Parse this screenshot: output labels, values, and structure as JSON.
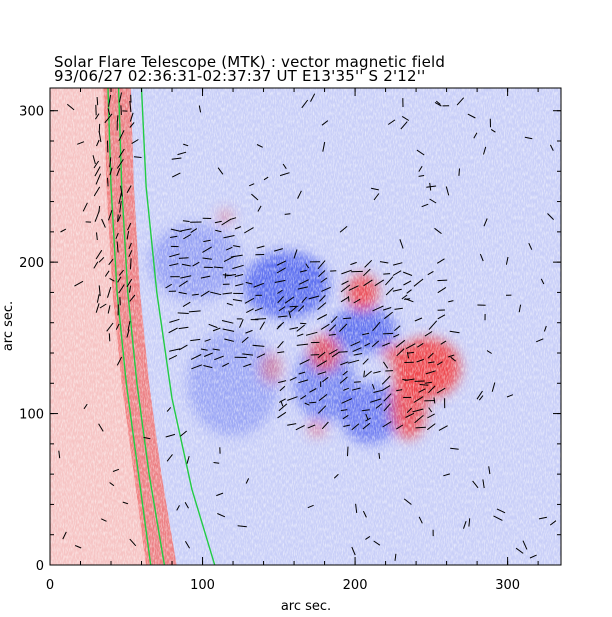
{
  "chart_data": {
    "type": "heatmap",
    "title": "Solar Flare Telescope (MTK) : vector magnetic field",
    "subtitle": "93/06/27  02:36:31-02:37:37 UT    E13'35''  S 2'12''",
    "xlabel": "arc sec.",
    "ylabel": "arc sec.",
    "xlim": [
      0,
      335
    ],
    "ylim": [
      0,
      315
    ],
    "x_ticks": [
      0,
      100,
      200,
      300
    ],
    "y_ticks": [
      0,
      100,
      200,
      300
    ],
    "grid": false,
    "legend": "none",
    "colormap": {
      "negative_polarity": "#5a6cf0",
      "positive_polarity": "#f0444a",
      "zero": "#ffffff",
      "contour": "#22cc44",
      "vectors": "#000000"
    },
    "limb_contours": [
      {
        "name": "inner",
        "points": [
          [
            38,
            315
          ],
          [
            40,
            250
          ],
          [
            44,
            180
          ],
          [
            50,
            120
          ],
          [
            58,
            60
          ],
          [
            66,
            0
          ]
        ]
      },
      {
        "name": "middle",
        "points": [
          [
            45,
            315
          ],
          [
            47,
            250
          ],
          [
            51,
            180
          ],
          [
            57,
            120
          ],
          [
            65,
            60
          ],
          [
            75,
            0
          ]
        ]
      },
      {
        "name": "outer",
        "points": [
          [
            60,
            315
          ],
          [
            63,
            250
          ],
          [
            70,
            180
          ],
          [
            80,
            110
          ],
          [
            93,
            50
          ],
          [
            108,
            0
          ]
        ]
      }
    ],
    "flux_patches": [
      {
        "polarity": "negative",
        "x": 155,
        "y": 185,
        "rx": 28,
        "ry": 22,
        "strength": 0.95
      },
      {
        "polarity": "negative",
        "x": 205,
        "y": 155,
        "rx": 22,
        "ry": 15,
        "strength": 0.9
      },
      {
        "polarity": "negative",
        "x": 180,
        "y": 120,
        "rx": 20,
        "ry": 25,
        "strength": 0.7
      },
      {
        "polarity": "negative",
        "x": 210,
        "y": 100,
        "rx": 20,
        "ry": 20,
        "strength": 0.8
      },
      {
        "polarity": "negative",
        "x": 95,
        "y": 200,
        "rx": 30,
        "ry": 25,
        "strength": 0.45
      },
      {
        "polarity": "negative",
        "x": 120,
        "y": 120,
        "rx": 30,
        "ry": 35,
        "strength": 0.4
      },
      {
        "polarity": "positive",
        "x": 247,
        "y": 130,
        "rx": 22,
        "ry": 20,
        "strength": 0.95
      },
      {
        "polarity": "positive",
        "x": 235,
        "y": 105,
        "rx": 12,
        "ry": 22,
        "strength": 0.85
      },
      {
        "polarity": "positive",
        "x": 205,
        "y": 180,
        "rx": 10,
        "ry": 12,
        "strength": 0.9
      },
      {
        "polarity": "positive",
        "x": 180,
        "y": 140,
        "rx": 10,
        "ry": 12,
        "strength": 0.8
      },
      {
        "polarity": "positive",
        "x": 225,
        "y": 140,
        "rx": 7,
        "ry": 6,
        "strength": 0.7
      },
      {
        "polarity": "positive",
        "x": 145,
        "y": 130,
        "rx": 7,
        "ry": 10,
        "strength": 0.45
      },
      {
        "polarity": "positive",
        "x": 115,
        "y": 230,
        "rx": 5,
        "ry": 5,
        "strength": 0.4
      },
      {
        "polarity": "positive",
        "x": 175,
        "y": 90,
        "rx": 6,
        "ry": 5,
        "strength": 0.5
      }
    ],
    "vector_field": {
      "description": "transverse field vectors (short line segments)",
      "dense_regions": [
        {
          "x": [
            150,
            260
          ],
          "y": [
            90,
            200
          ],
          "angle_deg": 25
        },
        {
          "x": [
            80,
            140
          ],
          "y": [
            130,
            230
          ],
          "angle_deg": 10
        },
        {
          "x": [
            30,
            55
          ],
          "y": [
            150,
            310
          ],
          "angle_deg": 75
        }
      ]
    }
  }
}
